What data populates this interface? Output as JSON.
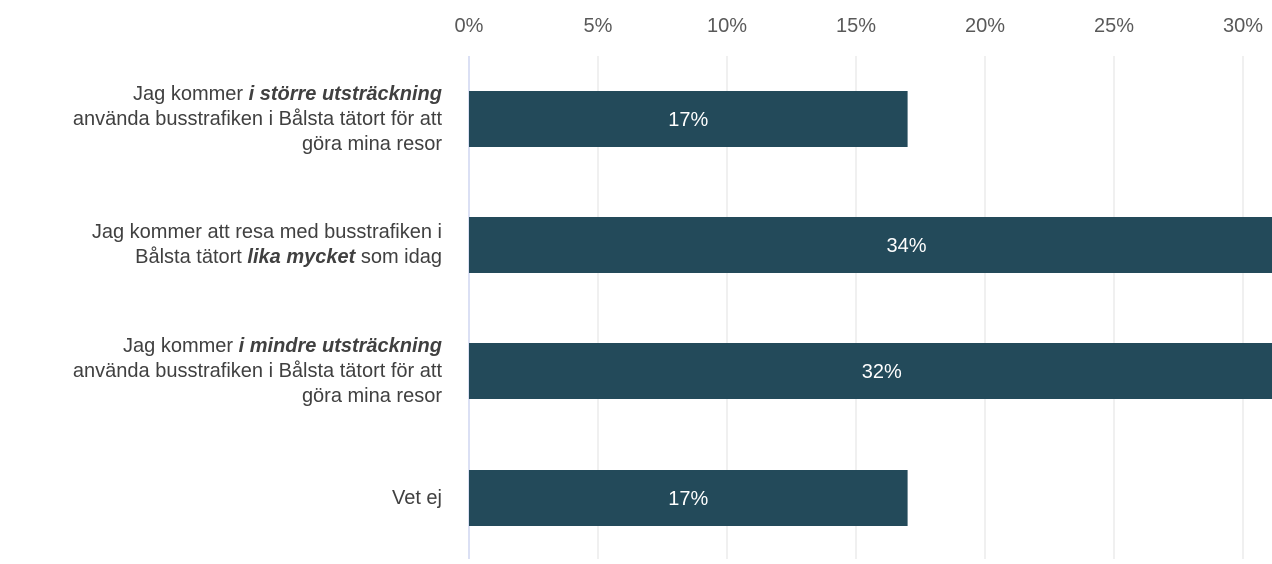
{
  "colors": {
    "bar": "#234a5a",
    "bar_label": "#ffffff",
    "tick_label": "#595959",
    "grid": "#e0e0e0",
    "axis": "#cfd6f0"
  },
  "chart_data": {
    "type": "bar",
    "orientation": "horizontal",
    "title": "",
    "xlabel": "",
    "ylabel": "",
    "xlim": [
      0,
      31
    ],
    "grid": true,
    "x_axis_position": "top",
    "x_ticks": [
      "0%",
      "5%",
      "10%",
      "15%",
      "20%",
      "25%",
      "30%"
    ],
    "categories": [
      "Jag kommer i större utsträckning använda busstrafiken i Bålsta tätort för att göra mina resor",
      "Jag kommer att resa med busstrafiken i Bålsta tätort lika mycket som idag",
      "Jag kommer i mindre utsträckning använda busstrafiken i Bålsta tätort för att göra mina resor",
      "Vet ej"
    ],
    "category_lines": [
      [
        [
          {
            "text": "Jag kommer ",
            "style": "normal"
          },
          {
            "text": "i större utsträckning",
            "style": "bold-italic"
          }
        ],
        [
          {
            "text": "använda busstrafiken i Bålsta tätort för att",
            "style": "normal"
          }
        ],
        [
          {
            "text": "göra mina resor",
            "style": "normal"
          }
        ]
      ],
      [
        [
          {
            "text": "Jag kommer att resa med busstrafiken i",
            "style": "normal"
          }
        ],
        [
          {
            "text": "Bålsta tätort ",
            "style": "normal"
          },
          {
            "text": "lika mycket",
            "style": "bold-italic"
          },
          {
            "text": " som idag",
            "style": "normal"
          }
        ]
      ],
      [
        [
          {
            "text": "Jag kommer ",
            "style": "normal"
          },
          {
            "text": "i mindre utsträckning",
            "style": "bold-italic"
          }
        ],
        [
          {
            "text": "använda busstrafiken i Bålsta tätort för att",
            "style": "normal"
          }
        ],
        [
          {
            "text": "göra mina resor",
            "style": "normal"
          }
        ]
      ],
      [
        [
          {
            "text": "Vet ej",
            "style": "normal"
          }
        ]
      ]
    ],
    "values": [
      17,
      34,
      32,
      17
    ],
    "data_labels": [
      "17%",
      "34%",
      "32%",
      "17%"
    ]
  }
}
